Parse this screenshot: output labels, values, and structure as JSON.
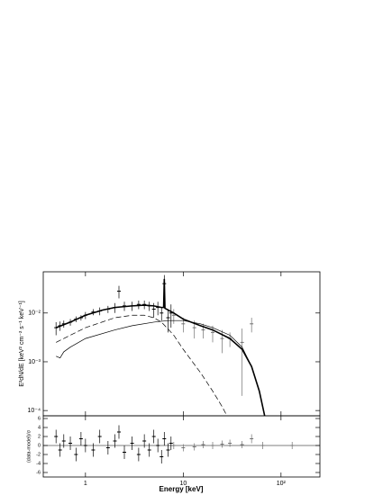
{
  "chart_data": [
    {
      "type": "errorbar",
      "ylabel": "E²dN/dE [keV² cm⁻² s⁻¹ keV⁻¹]",
      "log_x": true,
      "log_y": true,
      "ylim": [
        7.8e-05,
        0.07
      ],
      "yticks": [
        {
          "value": 0.0001,
          "label": "10⁻⁴"
        },
        {
          "value": 0.001,
          "label": "10⁻³"
        },
        {
          "value": 0.01,
          "label": "10⁻²"
        }
      ],
      "series": [
        {
          "color": "#000000",
          "style": "points",
          "x": [
            0.5,
            0.55,
            0.6,
            0.7,
            0.8,
            0.9,
            1.0,
            1.2,
            1.4,
            1.7,
            2.0,
            2.2,
            2.5,
            3.0,
            3.5,
            4.0,
            4.5,
            5.0,
            5.5,
            6.0,
            6.4,
            7.0,
            7.5
          ],
          "values": [
            0.005,
            0.0055,
            0.006,
            0.0065,
            0.0075,
            0.008,
            0.009,
            0.0105,
            0.011,
            0.012,
            0.013,
            0.028,
            0.014,
            0.014,
            0.015,
            0.015,
            0.014,
            0.012,
            0.013,
            0.01,
            0.04,
            0.008,
            0.01
          ],
          "errors": [
            0.0015,
            0.0012,
            0.001,
            0.001,
            0.001,
            0.001,
            0.0015,
            0.0015,
            0.002,
            0.002,
            0.003,
            0.008,
            0.003,
            0.003,
            0.003,
            0.003,
            0.003,
            0.004,
            0.004,
            0.003,
            0.02,
            0.004,
            0.005
          ]
        },
        {
          "color": "#707070",
          "style": "points",
          "x": [
            8,
            10,
            13,
            16,
            20,
            25,
            30,
            40,
            50
          ],
          "values": [
            0.009,
            0.006,
            0.005,
            0.0045,
            0.004,
            0.003,
            0.003,
            0.0025,
            0.006
          ],
          "errors": [
            0.003,
            0.002,
            0.002,
            0.0015,
            0.0015,
            0.0015,
            0.001,
            0.0023,
            0.002
          ]
        },
        {
          "color": "#000000",
          "style": "solid",
          "width": 1.6,
          "x": [
            0.5,
            0.7,
            1,
            1.5,
            2,
            3,
            4,
            5,
            6,
            6.3,
            6.4,
            6.5,
            8,
            10,
            15,
            20,
            30,
            40,
            50,
            60,
            70
          ],
          "values": [
            0.005,
            0.0065,
            0.009,
            0.0115,
            0.013,
            0.014,
            0.0145,
            0.014,
            0.013,
            0.013,
            0.05,
            0.0125,
            0.01,
            0.0075,
            0.0055,
            0.0045,
            0.003,
            0.0018,
            0.0008,
            0.00025,
            6e-05
          ]
        },
        {
          "color": "#000000",
          "style": "solid",
          "width": 0.7,
          "x": [
            0.5,
            0.55,
            0.6,
            0.7,
            1,
            2,
            3,
            5,
            7,
            10,
            15,
            20,
            30,
            40,
            50,
            60,
            70
          ],
          "values": [
            0.0013,
            0.0012,
            0.0016,
            0.002,
            0.003,
            0.0045,
            0.0055,
            0.0065,
            0.007,
            0.007,
            0.006,
            0.005,
            0.0035,
            0.002,
            0.0008,
            0.00025,
            6e-05
          ]
        },
        {
          "color": "#000000",
          "style": "dashed",
          "width": 0.7,
          "x": [
            0.5,
            0.7,
            1,
            2,
            3,
            4,
            5,
            6,
            8,
            10,
            15,
            20,
            25,
            30
          ],
          "values": [
            0.0025,
            0.0035,
            0.005,
            0.008,
            0.009,
            0.009,
            0.008,
            0.0065,
            0.0035,
            0.0018,
            0.0006,
            0.00025,
            0.00012,
            6e-05
          ]
        }
      ]
    },
    {
      "type": "errorbar",
      "xlabel": "Energy [keV]",
      "ylabel": "(data-model)/σ",
      "log_x": true,
      "xlim": [
        0.37,
        250
      ],
      "xticks": [
        1,
        10,
        {
          "value": 100,
          "label": "10²"
        }
      ],
      "ylim": [
        -7,
        6.6
      ],
      "yticks": [
        -6,
        -4,
        -2,
        0,
        2,
        4,
        6
      ],
      "series": [
        {
          "color": "#000000",
          "style": "points",
          "x": [
            0.5,
            0.55,
            0.6,
            0.7,
            0.8,
            0.9,
            1.0,
            1.2,
            1.4,
            1.7,
            2.0,
            2.2,
            2.5,
            3.0,
            3.5,
            4.0,
            4.5,
            5.0,
            5.5,
            6.0,
            6.4,
            7.0,
            7.5
          ],
          "values": [
            2,
            -1,
            1,
            0.5,
            -2,
            1.5,
            0,
            -1,
            2,
            -0.5,
            1,
            3,
            -1.5,
            0.5,
            -2,
            1,
            -1,
            2,
            0,
            -2.5,
            1.5,
            -1,
            0.5
          ],
          "errors": [
            1.5,
            1.5,
            1.5,
            1.5,
            1.5,
            1.5,
            1.5,
            1.5,
            1.5,
            1.5,
            1.5,
            1.5,
            1.5,
            1.5,
            1.5,
            1.5,
            1.5,
            1.5,
            1.5,
            1.5,
            1.5,
            1.5,
            1.5
          ]
        },
        {
          "color": "#707070",
          "style": "points",
          "x": [
            8,
            10,
            13,
            16,
            20,
            25,
            30,
            40,
            50,
            65,
            130
          ],
          "values": [
            0,
            -0.5,
            -0.3,
            0.2,
            0,
            0.3,
            0.5,
            0.2,
            1.5,
            0,
            0
          ],
          "errors": [
            0.8,
            0.8,
            0.8,
            0.8,
            0.8,
            0.8,
            0.8,
            0.8,
            1,
            0.8,
            0.8
          ]
        }
      ]
    }
  ]
}
